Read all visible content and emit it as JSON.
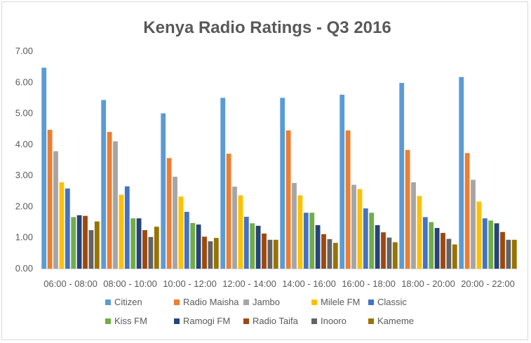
{
  "chart_data": {
    "type": "bar",
    "title": "Kenya Radio Ratings - Q3 2016",
    "xlabel": "",
    "ylabel": "",
    "ylim": [
      0,
      7
    ],
    "yticks": [
      "0.00",
      "1.00",
      "2.00",
      "3.00",
      "4.00",
      "5.00",
      "6.00",
      "7.00"
    ],
    "grid": false,
    "legend_position": "bottom",
    "categories": [
      "06:00 - 08:00",
      "08:00 - 10:00",
      "10:00 - 12:00",
      "12:00 - 14:00",
      "14:00 - 16:00",
      "16:00 - 18:00",
      "18:00 - 20:00",
      "20:00 - 22:00"
    ],
    "series": [
      {
        "name": "Citizen",
        "color": "#5b9bd5",
        "values": [
          6.47,
          5.43,
          5.0,
          5.5,
          5.5,
          5.6,
          5.98,
          6.17
        ]
      },
      {
        "name": "Radio Maisha",
        "color": "#ed7d31",
        "values": [
          4.47,
          4.4,
          3.56,
          3.7,
          4.45,
          4.45,
          3.82,
          3.72
        ]
      },
      {
        "name": "Jambo",
        "color": "#a5a5a5",
        "values": [
          3.78,
          4.1,
          2.96,
          2.64,
          2.76,
          2.7,
          2.78,
          2.86
        ]
      },
      {
        "name": "Milele FM",
        "color": "#ffc000",
        "values": [
          2.78,
          2.38,
          2.32,
          2.36,
          2.36,
          2.56,
          2.34,
          2.16
        ]
      },
      {
        "name": "Classic",
        "color": "#4472c4",
        "values": [
          2.58,
          2.65,
          1.83,
          1.67,
          1.8,
          1.94,
          1.66,
          1.62
        ]
      },
      {
        "name": "Kiss FM",
        "color": "#70ad47",
        "values": [
          1.66,
          1.62,
          1.47,
          1.46,
          1.8,
          1.8,
          1.5,
          1.55
        ]
      },
      {
        "name": "Ramogi FM",
        "color": "#264478",
        "values": [
          1.72,
          1.62,
          1.42,
          1.38,
          1.4,
          1.4,
          1.31,
          1.46
        ]
      },
      {
        "name": "Radio Taifa",
        "color": "#9e480e",
        "values": [
          1.7,
          1.24,
          1.03,
          1.13,
          1.11,
          1.17,
          1.15,
          1.18
        ]
      },
      {
        "name": "Inooro",
        "color": "#636363",
        "values": [
          1.24,
          1.02,
          0.88,
          0.93,
          0.95,
          1.0,
          0.96,
          0.93
        ]
      },
      {
        "name": "Kameme",
        "color": "#997300",
        "values": [
          1.52,
          1.35,
          0.99,
          0.93,
          0.83,
          0.85,
          0.78,
          0.93
        ]
      }
    ]
  }
}
